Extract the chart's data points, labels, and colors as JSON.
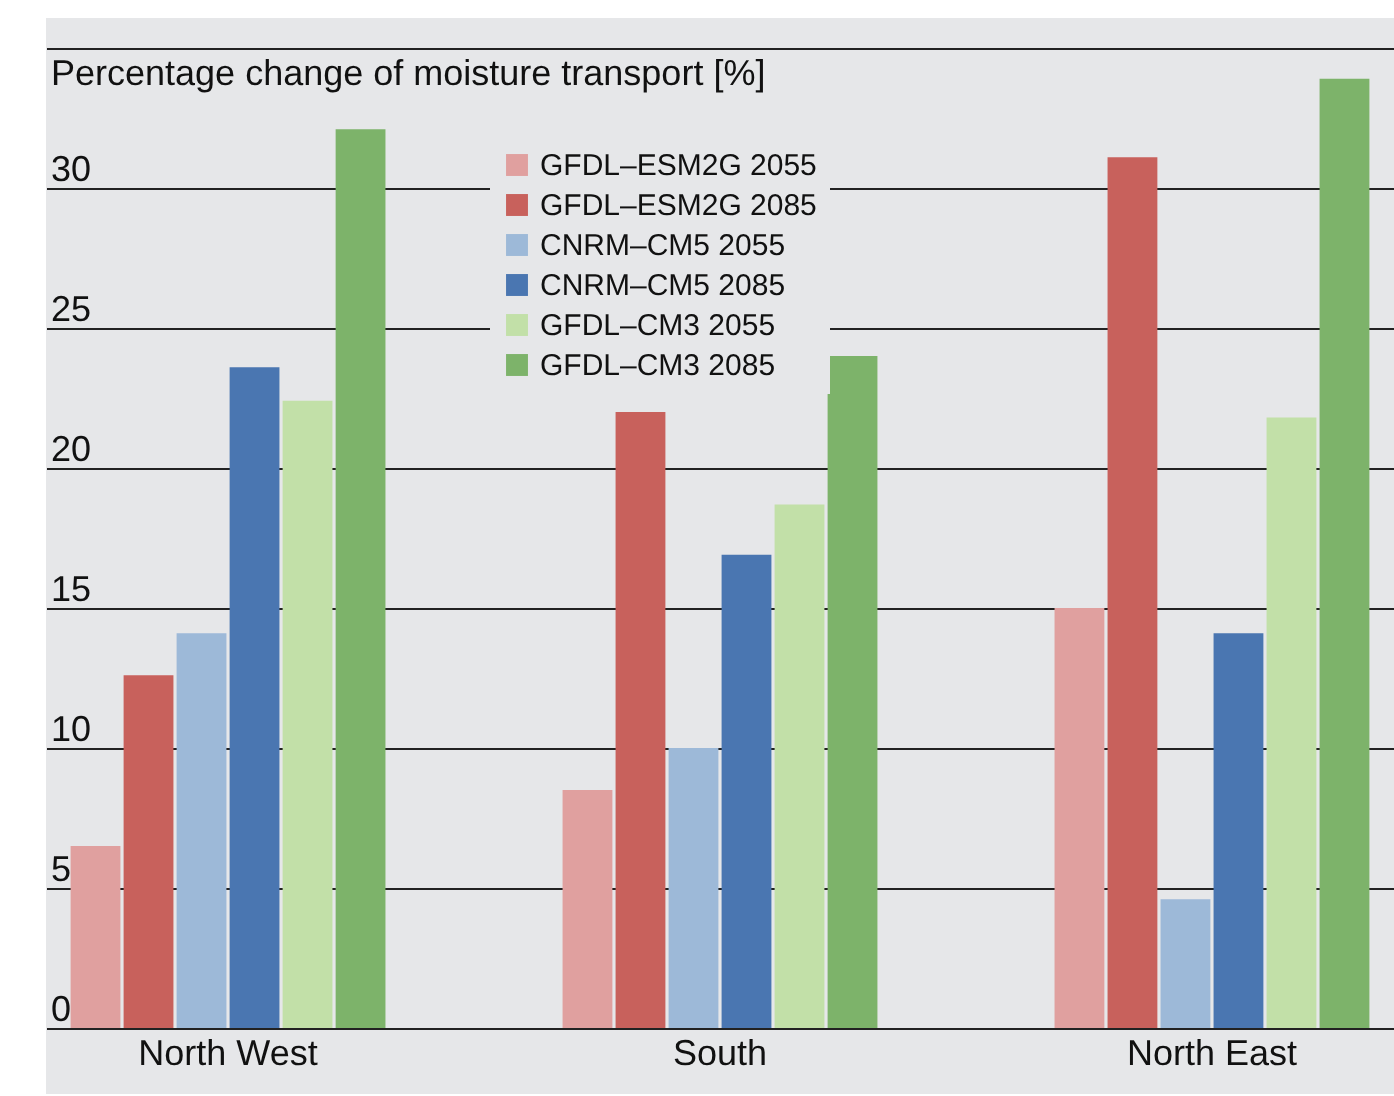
{
  "chart_data": {
    "type": "bar",
    "ylabel": "Percentage change of moisture transport [%]",
    "categories": [
      "North West",
      "South",
      "North East"
    ],
    "series": [
      {
        "name": "GFDL–ESM2G 2055",
        "color": "#e0a09f",
        "values": [
          6.5,
          8.5,
          15.0
        ]
      },
      {
        "name": "GFDL–ESM2G 2085",
        "color": "#c8615c",
        "values": [
          12.6,
          22.0,
          31.1
        ]
      },
      {
        "name": "CNRM–CM5 2055",
        "color": "#9db9d8",
        "values": [
          14.1,
          10.0,
          4.6
        ]
      },
      {
        "name": "CNRM–CM5 2085",
        "color": "#4a76b1",
        "values": [
          23.6,
          16.9,
          14.1
        ]
      },
      {
        "name": "GFDL–CM3 2055",
        "color": "#c2e0a8",
        "values": [
          22.4,
          18.7,
          21.8
        ]
      },
      {
        "name": "GFDL–CM3 2085",
        "color": "#7db36a",
        "values": [
          32.1,
          24.0,
          33.9
        ]
      }
    ],
    "ylim": [
      0,
      35
    ],
    "yticks": [
      0,
      5,
      10,
      15,
      20,
      25,
      30,
      {
        "value": 35,
        "label": null
      }
    ],
    "grid": "y",
    "legend": "top"
  }
}
